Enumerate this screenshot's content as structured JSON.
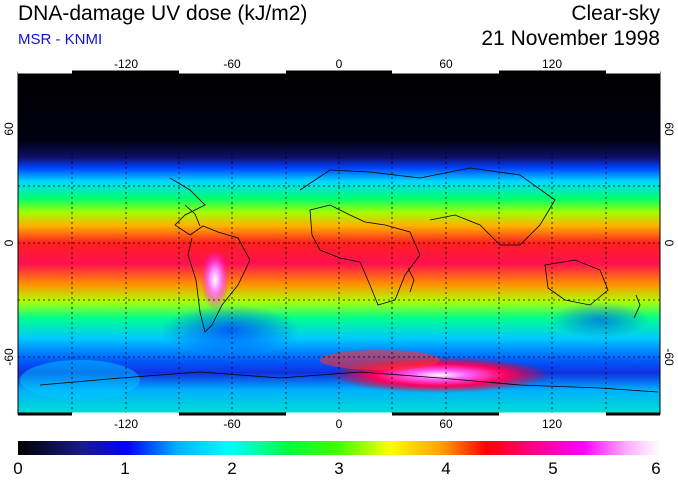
{
  "header": {
    "title": "DNA-damage UV dose (kJ/m2)",
    "subtitle": "MSR - KNMI",
    "condition": "Clear-sky",
    "date": "21 November 1998"
  },
  "colors": {
    "subtitle": "#1010e0",
    "scale": [
      "#000000",
      "#1a1a8c",
      "#0000ff",
      "#00b4ff",
      "#00ffff",
      "#00ff80",
      "#00ff00",
      "#80ff00",
      "#ffff00",
      "#ffa000",
      "#ff0000",
      "#ff0080",
      "#ff00ff",
      "#ffc0ff",
      "#ffffff"
    ]
  },
  "map": {
    "projection": "lat-lon",
    "lon_ticks": [
      "-120",
      "-60",
      "0",
      "60",
      "120"
    ],
    "lat_ticks": [
      "60",
      "0",
      "-60"
    ],
    "lat_ticks_right": [
      "60",
      "0",
      "-60"
    ]
  },
  "colorbar": {
    "min": 0,
    "max": 6,
    "labels": [
      "0",
      "1",
      "2",
      "3",
      "4",
      "5",
      "6"
    ]
  }
}
